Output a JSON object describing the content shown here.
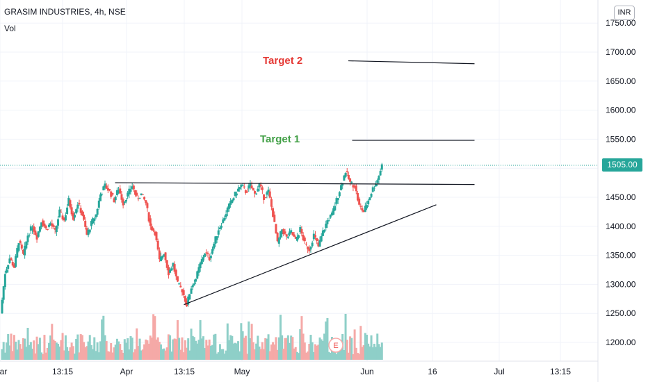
{
  "header": {
    "title": "GRASIM INDUSTRIES, 4h, NSE",
    "volume_label": "Vol",
    "currency": "INR"
  },
  "annotations": {
    "target1": "Target 1",
    "target2": "Target 2"
  },
  "colors": {
    "up": "#26a69a",
    "down": "#ef5350",
    "up_volume": "#8ecfc8",
    "down_volume": "#f5a9a7",
    "last_price_line": "#26a69a",
    "target1": "#43a047",
    "target2": "#e53935"
  },
  "chart_data": {
    "type": "candlestick",
    "symbol": "GRASIM INDUSTRIES",
    "interval": "4h",
    "exchange": "NSE",
    "last_price": "1505.00",
    "y_ticks": [
      1200,
      1250,
      1300,
      1350,
      1400,
      1450,
      1500,
      1550,
      1600,
      1650,
      1700,
      1750
    ],
    "y_tick_labels": [
      "1200.00",
      "1250.00",
      "1300.00",
      "1350.00",
      "1400.00",
      "1450.00",
      "1500.00",
      "1550.00",
      "1600.00",
      "1650.00",
      "1700.00",
      "1750.00"
    ],
    "x_tick_labels": [
      "Mar",
      "13:15",
      "Apr",
      "13:15",
      "May",
      "Jun",
      "16",
      "Jul",
      "13:15"
    ],
    "earnings_marker": "E",
    "path_closes": [
      1250,
      1320,
      1345,
      1330,
      1375,
      1350,
      1385,
      1400,
      1382,
      1410,
      1395,
      1405,
      1390,
      1425,
      1410,
      1445,
      1415,
      1440,
      1420,
      1385,
      1405,
      1420,
      1455,
      1470,
      1460,
      1445,
      1465,
      1440,
      1455,
      1470,
      1448,
      1455,
      1440,
      1400,
      1390,
      1340,
      1355,
      1320,
      1335,
      1300,
      1290,
      1265,
      1295,
      1310,
      1335,
      1355,
      1345,
      1370,
      1395,
      1410,
      1430,
      1445,
      1460,
      1470,
      1460,
      1470,
      1455,
      1472,
      1450,
      1460,
      1420,
      1370,
      1395,
      1380,
      1390,
      1375,
      1395,
      1370,
      1360,
      1385,
      1365,
      1390,
      1410,
      1420,
      1445,
      1470,
      1495,
      1475,
      1470,
      1435,
      1425,
      1445,
      1465,
      1480,
      1505
    ],
    "trend_lines": [
      {
        "name": "Target 2",
        "points": [
          [
            "2021-05-29",
            1685
          ],
          [
            "2021-07-01",
            1680
          ]
        ]
      },
      {
        "name": "Target 1",
        "points": [
          [
            "2021-05-30",
            1548
          ],
          [
            "2021-07-01",
            1548
          ]
        ]
      },
      {
        "name": "resistance",
        "points": [
          [
            "2021-03-29",
            1475
          ],
          [
            "2021-07-01",
            1472
          ]
        ]
      },
      {
        "name": "support",
        "points": [
          [
            "2021-04-16",
            1265
          ],
          [
            "2021-06-21",
            1437
          ]
        ]
      }
    ]
  }
}
